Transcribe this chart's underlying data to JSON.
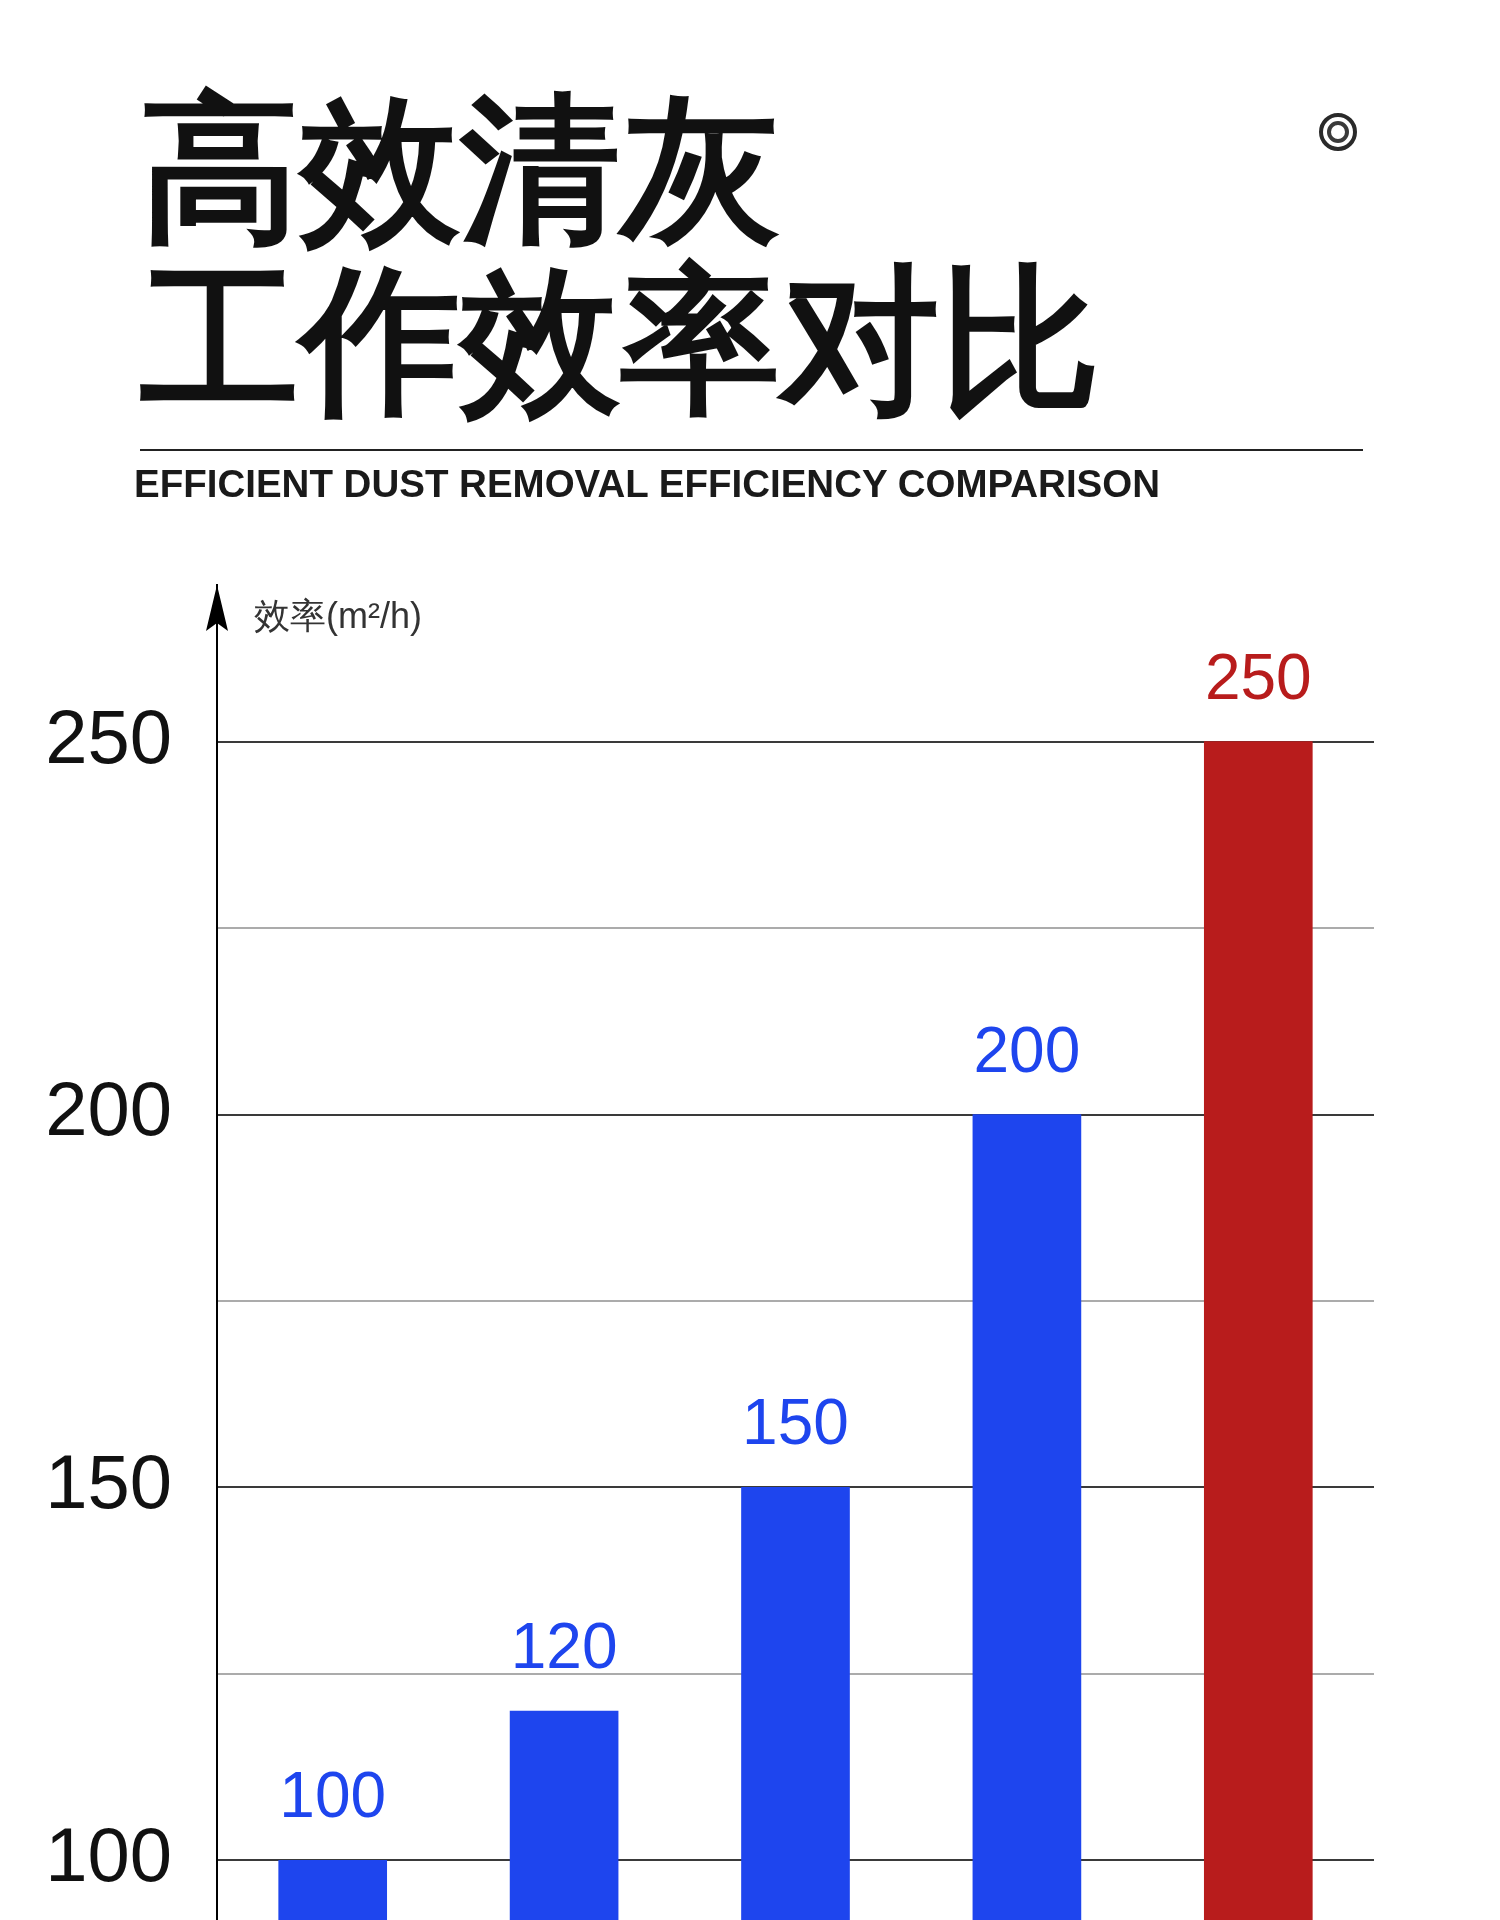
{
  "chart_data": {
    "type": "bar",
    "title": "高效清灰工作效率对比",
    "subtitle": "EFFICIENT DUST REMOVAL EFFICIENCY COMPARISON",
    "ylabel": "效率(m²/h)",
    "categories": [
      null,
      null,
      null,
      null,
      null
    ],
    "values": [
      100,
      120,
      150,
      200,
      250
    ],
    "colors": [
      "#1e45ee",
      "#1e45ee",
      "#1e45ee",
      "#1e45ee",
      "#b81c1c"
    ],
    "ylim": [
      92,
      271
    ],
    "yticks": [
      100,
      {
        "value": 125,
        "label": null
      },
      150,
      {
        "value": 175,
        "label": null
      },
      200,
      {
        "value": 225,
        "label": null
      },
      250
    ],
    "grid": "y",
    "data_labels": true,
    "tick_labels": "y"
  }
}
